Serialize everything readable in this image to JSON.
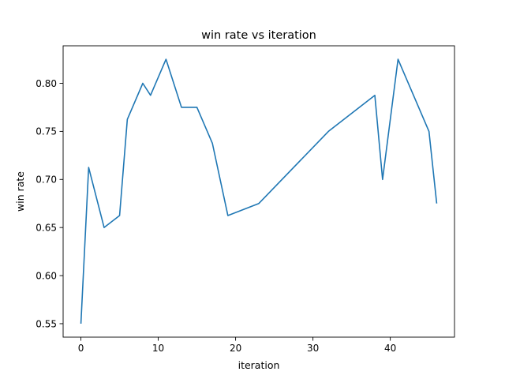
{
  "chart_data": {
    "type": "line",
    "title": "win rate vs iteration",
    "xlabel": "iteration",
    "ylabel": "win rate",
    "xlim": [
      -2.3,
      48.3
    ],
    "ylim": [
      0.536,
      0.839
    ],
    "xticks": [
      0,
      10,
      20,
      30,
      40
    ],
    "xtick_labels": [
      "0",
      "10",
      "20",
      "30",
      "40"
    ],
    "yticks": [
      0.55,
      0.6,
      0.65,
      0.7,
      0.75,
      0.8
    ],
    "ytick_labels": [
      "0.55",
      "0.60",
      "0.65",
      "0.70",
      "0.75",
      "0.80"
    ],
    "grid": false,
    "series": [
      {
        "color": "#1f77b4",
        "x": [
          0,
          1,
          3,
          5,
          6,
          8,
          9,
          11,
          13,
          15,
          17,
          19,
          23,
          32,
          38,
          39,
          41,
          45,
          46
        ],
        "values": [
          0.55,
          0.7125,
          0.65,
          0.6625,
          0.7625,
          0.8,
          0.7875,
          0.825,
          0.775,
          0.775,
          0.7375,
          0.6625,
          0.675,
          0.75,
          0.7875,
          0.7,
          0.825,
          0.75,
          0.675
        ]
      }
    ]
  }
}
